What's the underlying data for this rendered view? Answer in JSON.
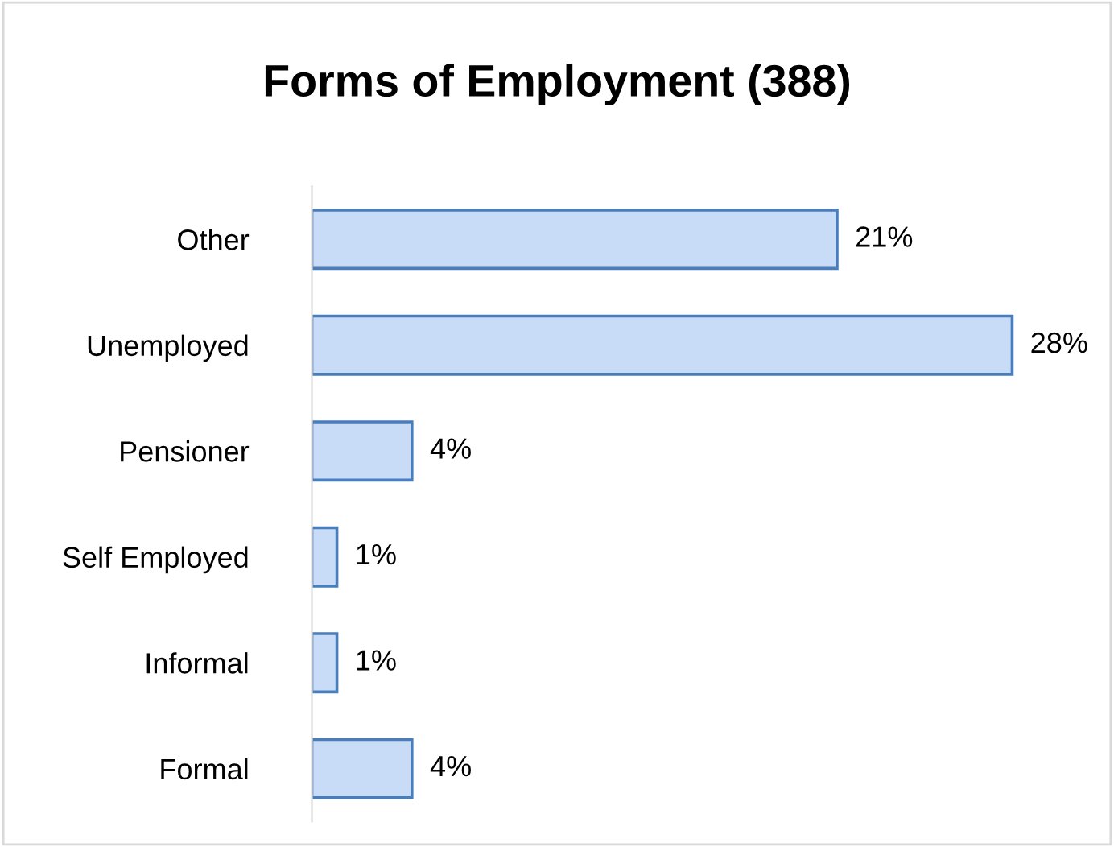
{
  "chart_data": {
    "type": "bar",
    "orientation": "horizontal",
    "title": "Forms of Employment (388)",
    "categories": [
      "Other",
      "Unemployed",
      "Pensioner",
      "Self Employed",
      "Informal",
      "Formal"
    ],
    "values": [
      21,
      28,
      4,
      1,
      1,
      4
    ],
    "value_labels": [
      "21%",
      "28%",
      "4%",
      "1%",
      "1%",
      "4%"
    ],
    "color": "#c9dcf7",
    "grid": false,
    "legend": false
  }
}
